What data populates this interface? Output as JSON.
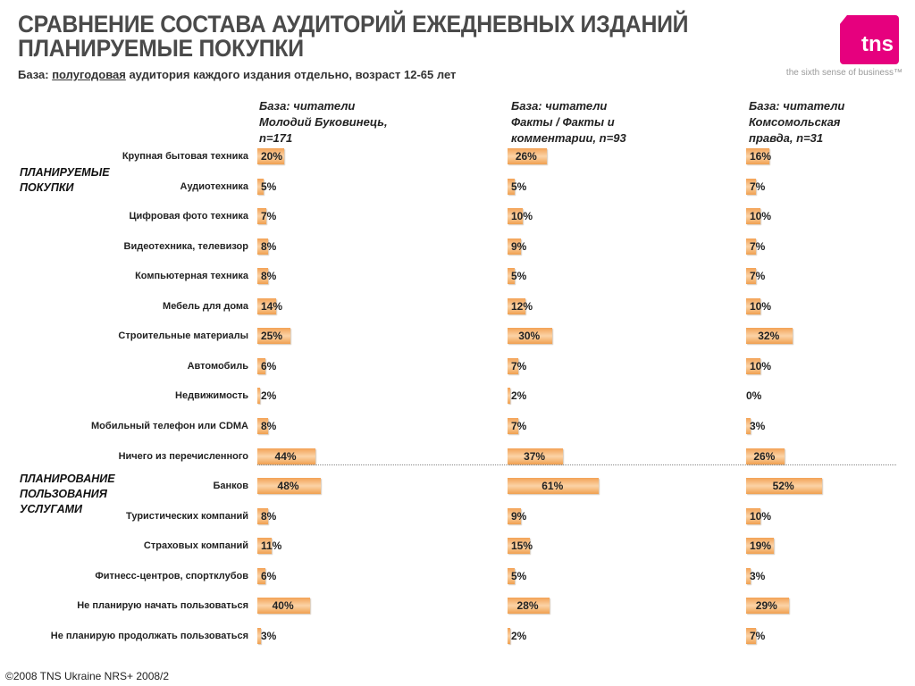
{
  "header": {
    "title_line1": "СРАВНЕНИЕ СОСТАВА АУДИТОРИЙ ЕЖЕДНЕВНЫХ ИЗДАНИЙ",
    "title_line2": "ПЛАНИРУЕМЫЕ ПОКУПКИ",
    "subtitle_prefix": "База: ",
    "subtitle_underlined": "полугодовая",
    "subtitle_rest": " аудитория каждого издания отдельно, возраст 12-65 лет"
  },
  "logo": {
    "text": "tns",
    "tagline": "the sixth sense of business™",
    "color": "#e6007e"
  },
  "footer": "©2008 TNS Ukraine  NRS+ 2008/2",
  "chart_data": {
    "type": "bar",
    "orientation": "horizontal",
    "sections": [
      {
        "label": "ПЛАНИРУЕМЫЕ ПОКУПКИ",
        "rows": [
          0,
          10
        ]
      },
      {
        "label": "ПЛАНИРОВАНИЕ ПОЛЬЗОВАНИЯ УСЛУГАМИ",
        "rows": [
          11,
          16
        ]
      }
    ],
    "categories": [
      "Крупная бытовая техника",
      "Аудиотехника",
      "Цифровая фото техника",
      "Видеотехника, телевизор",
      "Компьютерная техника",
      "Мебель для дома",
      "Строительные материалы",
      "Автомобиль",
      "Недвижимость",
      "Мобильный телефон или CDMA",
      "Ничего из перечисленного",
      "Банков",
      "Туристических компаний",
      "Страховых компаний",
      "Фитнесс-центров, спортклубов",
      "Не планирую начать пользоваться",
      "Не планирую продолжать пользоваться"
    ],
    "series": [
      {
        "name": "База: читатели Молодий Буковинець, n=171",
        "values": [
          20,
          5,
          7,
          8,
          8,
          14,
          25,
          6,
          2,
          8,
          44,
          48,
          8,
          11,
          6,
          40,
          3
        ]
      },
      {
        "name": "База: читатели Факты / Факты и комментарии, n=93",
        "values": [
          26,
          5,
          10,
          9,
          5,
          12,
          30,
          7,
          2,
          7,
          37,
          61,
          9,
          15,
          5,
          28,
          2
        ]
      },
      {
        "name": "База: читатели Комсомольская правда, n=31",
        "values": [
          16,
          7,
          10,
          7,
          7,
          10,
          32,
          10,
          0,
          3,
          26,
          52,
          10,
          19,
          3,
          29,
          7
        ]
      }
    ],
    "unit": "%",
    "bar_color": "#f3a255"
  }
}
